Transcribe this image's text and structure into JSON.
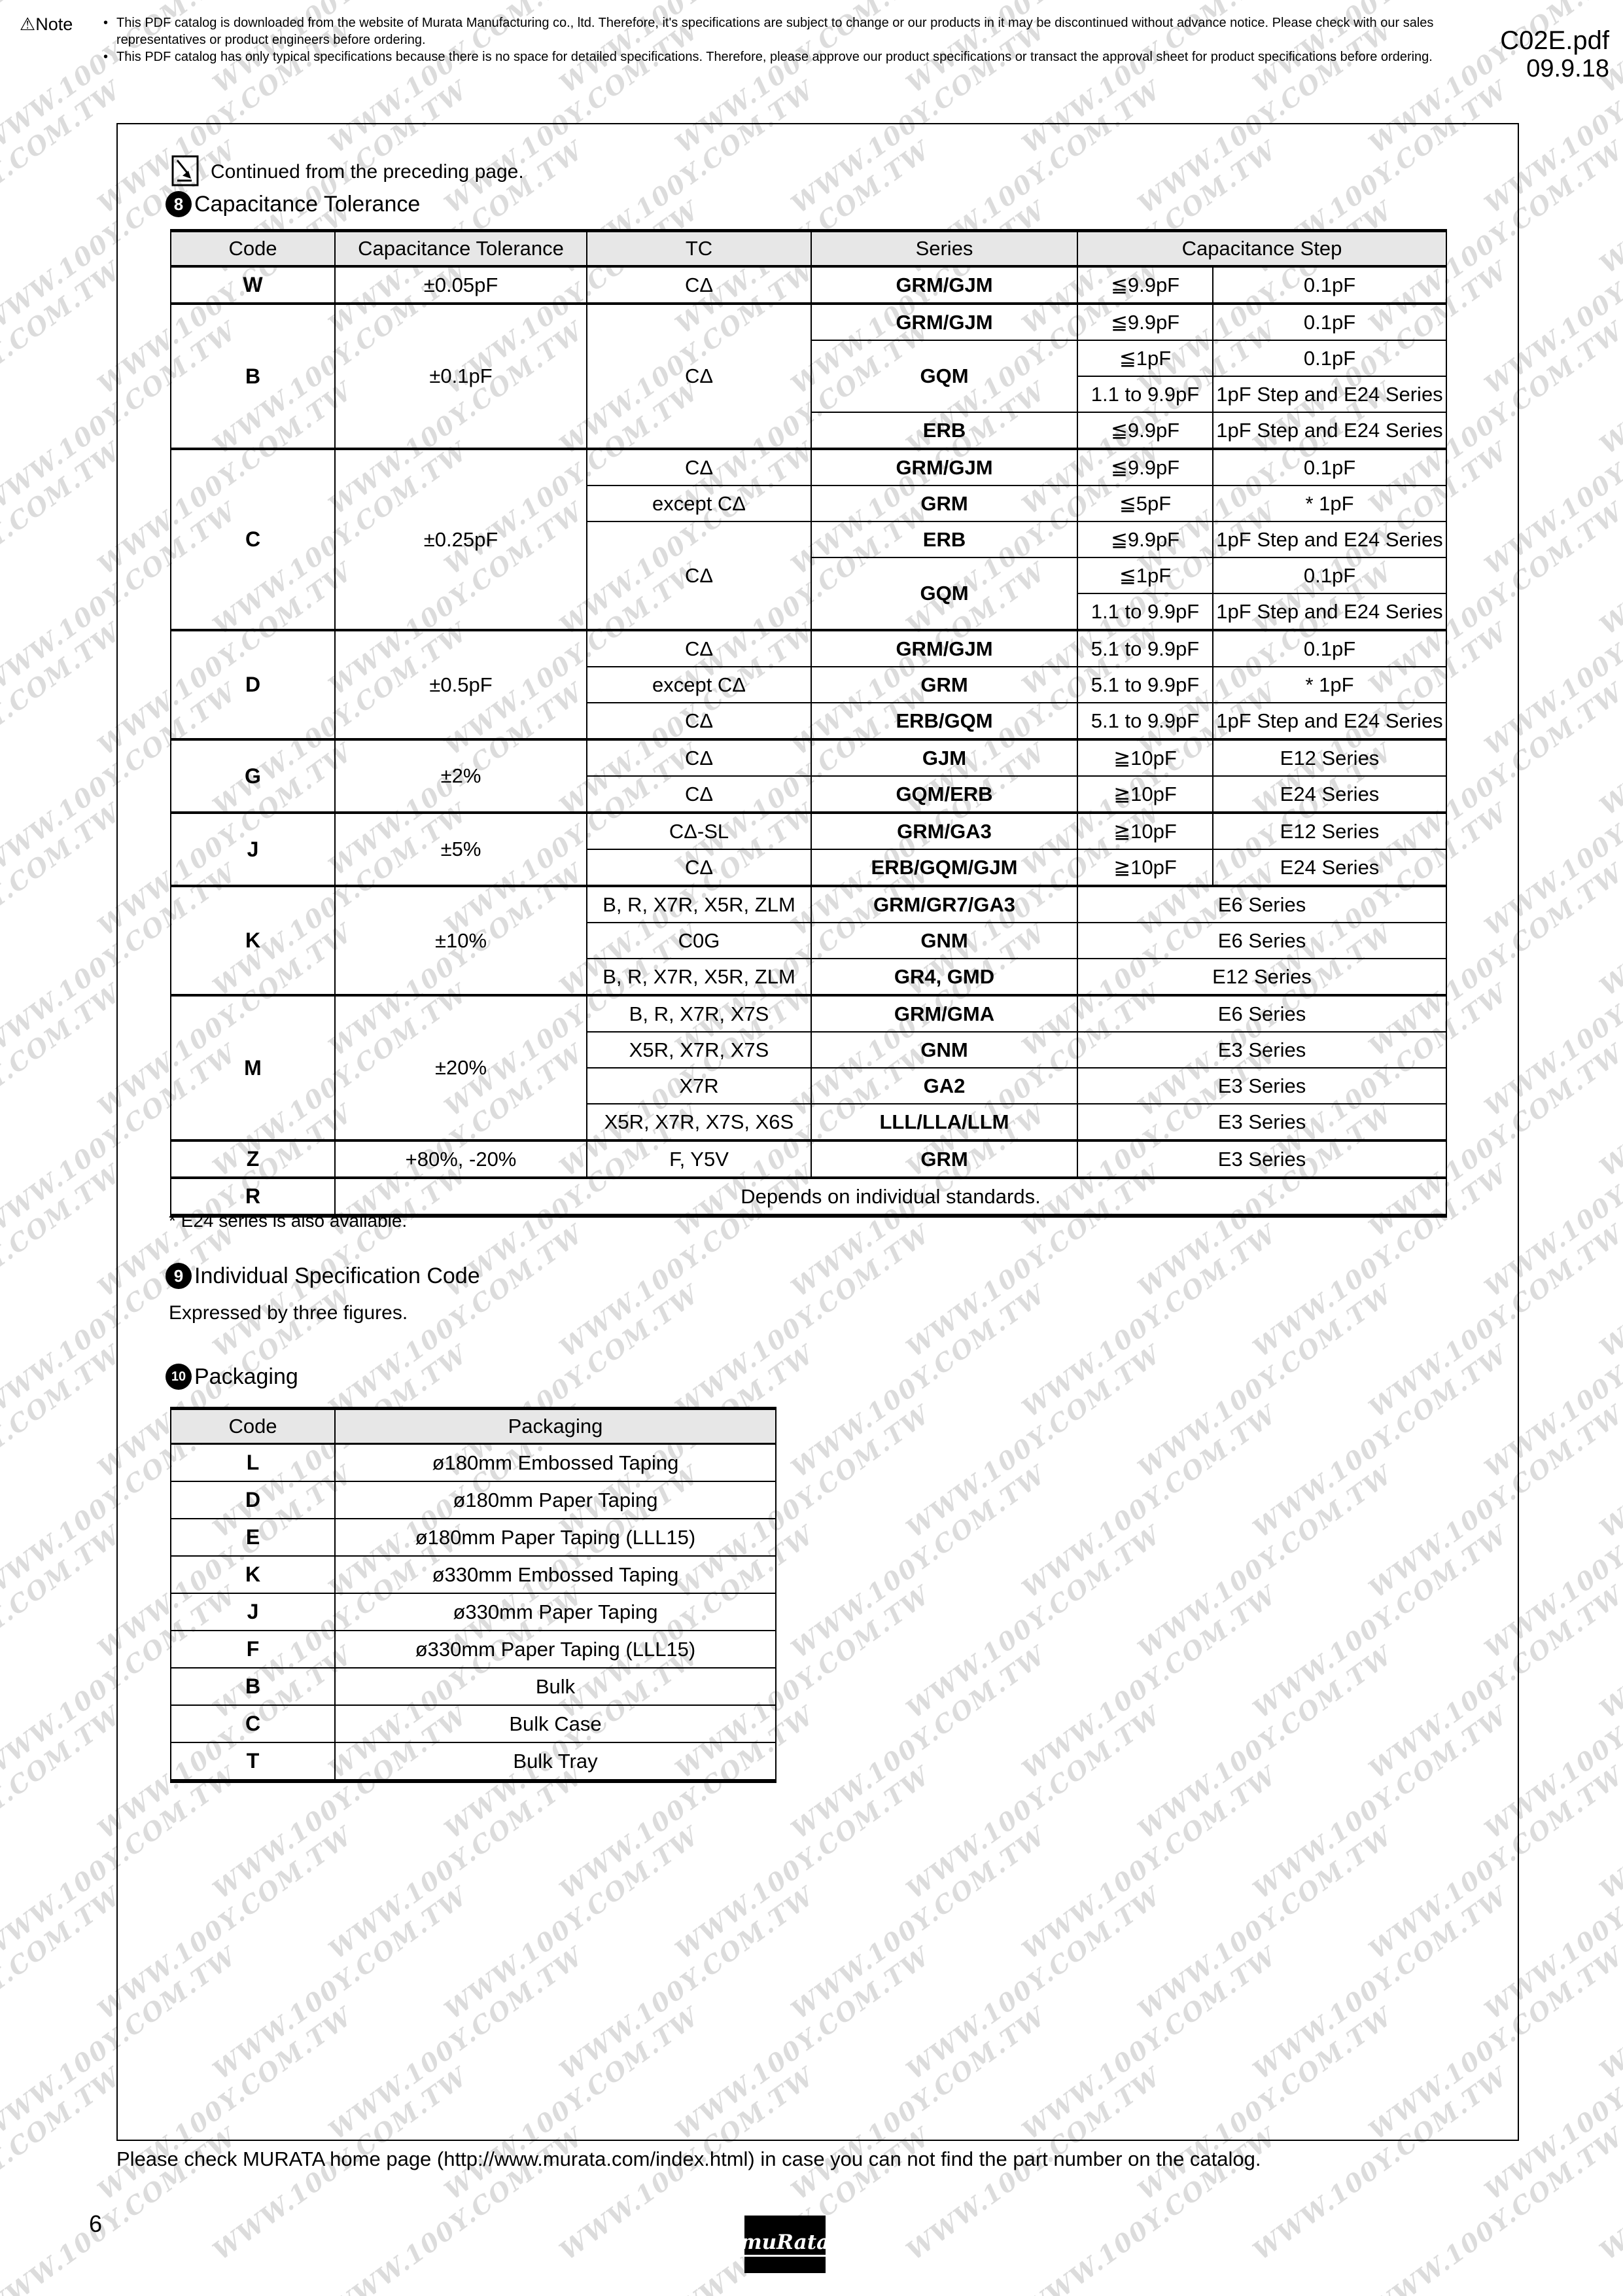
{
  "page": {
    "doc_id": "C02E.pdf",
    "doc_date": "09.9.18",
    "note_label": "Note",
    "note_lines": [
      "This PDF catalog is downloaded from the website of Murata Manufacturing co., ltd. Therefore, it's specifications are subject to change or our products in it may be discontinued without advance notice. Please check with our sales representatives or product engineers before ordering.",
      "This PDF catalog has only typical specifications because there is no space for detailed specifications. Therefore, please approve our product specifications or transact the approval sheet for product specifications before ordering."
    ],
    "continued_note": "Continued from the preceding page.",
    "footer_note": "Please check MURATA home page (http://www.murata.com/index.html) in case you can not find the part number on the catalog.",
    "page_number": "6",
    "brand": "muRata",
    "watermark_text": "WWW.100Y.COM.TW"
  },
  "sections": {
    "s8": {
      "number": "8",
      "title": "Capacitance Tolerance"
    },
    "s9": {
      "number": "9",
      "title": "Individual Specification Code",
      "subtitle": "Expressed by three figures."
    },
    "s10": {
      "number": "10",
      "title": "Packaging"
    }
  },
  "tol": {
    "headers": {
      "code": "Code",
      "tolerance": "Capacitance Tolerance",
      "tc": "TC",
      "series": "Series",
      "step": "Capacitance Step"
    },
    "footnote": "* E24 series is also available.",
    "groups": [
      {
        "code": "W",
        "tol": "±0.05pF",
        "rows": [
          {
            "tc": "CΔ",
            "series": "GRM/GJM",
            "s1": "≦9.9pF",
            "s2": "0.1pF"
          }
        ]
      },
      {
        "code": "B",
        "tol": "±0.1pF",
        "tc": "CΔ",
        "rows": [
          {
            "series": "GRM/GJM",
            "s1": "≦9.9pF",
            "s2": "0.1pF"
          },
          {
            "series": "GQM",
            "s1": "≦1pF",
            "s2": "0.1pF"
          },
          {
            "s1": "1.1 to 9.9pF",
            "s2": "1pF Step and E24 Series"
          },
          {
            "series": "ERB",
            "s1": "≦9.9pF",
            "s2": "1pF Step and E24 Series"
          }
        ]
      },
      {
        "code": "C",
        "tol": "±0.25pF",
        "rows": [
          {
            "tc": "CΔ",
            "series": "GRM/GJM",
            "s1": "≦9.9pF",
            "s2": "0.1pF"
          },
          {
            "tc": "except CΔ",
            "series": "GRM",
            "s1": "≦5pF",
            "s2": "* 1pF"
          },
          {
            "tc": "CΔ",
            "series": "ERB",
            "s1": "≦9.9pF",
            "s2": "1pF Step and E24 Series"
          },
          {
            "series": "GQM",
            "s1": "≦1pF",
            "s2": "0.1pF"
          },
          {
            "s1": "1.1 to 9.9pF",
            "s2": "1pF Step and E24 Series"
          }
        ]
      },
      {
        "code": "D",
        "tol": "±0.5pF",
        "rows": [
          {
            "tc": "CΔ",
            "series": "GRM/GJM",
            "s1": "5.1 to 9.9pF",
            "s2": "0.1pF"
          },
          {
            "tc": "except CΔ",
            "series": "GRM",
            "s1": "5.1 to 9.9pF",
            "s2": "* 1pF"
          },
          {
            "tc": "CΔ",
            "series": "ERB/GQM",
            "s1": "5.1 to 9.9pF",
            "s2": "1pF Step and E24 Series"
          }
        ]
      },
      {
        "code": "G",
        "tol": "±2%",
        "rows": [
          {
            "tc": "CΔ",
            "series": "GJM",
            "s1": "≧10pF",
            "s2": "E12 Series"
          },
          {
            "tc": "CΔ",
            "series": "GQM/ERB",
            "s1": "≧10pF",
            "s2": "E24 Series"
          }
        ]
      },
      {
        "code": "J",
        "tol": "±5%",
        "rows": [
          {
            "tc": "CΔ-SL",
            "series": "GRM/GA3",
            "s1": "≧10pF",
            "s2": "E12 Series"
          },
          {
            "tc": "CΔ",
            "series": "ERB/GQM/GJM",
            "s1": "≧10pF",
            "s2": "E24 Series"
          }
        ]
      },
      {
        "code": "K",
        "tol": "±10%",
        "rows": [
          {
            "tc": "B, R, X7R, X5R, ZLM",
            "series": "GRM/GR7/GA3",
            "step": "E6 Series"
          },
          {
            "tc": "C0G",
            "series": "GNM",
            "step": "E6 Series"
          },
          {
            "tc": "B, R, X7R, X5R, ZLM",
            "series": "GR4, GMD",
            "step": "E12 Series"
          }
        ]
      },
      {
        "code": "M",
        "tol": "±20%",
        "rows": [
          {
            "tc": "B, R, X7R, X7S",
            "series": "GRM/GMA",
            "step": "E6 Series"
          },
          {
            "tc": "X5R, X7R, X7S",
            "series": "GNM",
            "step": "E3 Series"
          },
          {
            "tc": "X7R",
            "series": "GA2",
            "step": "E3 Series"
          },
          {
            "tc": "X5R, X7R, X7S, X6S",
            "series": "LLL/LLA/LLM",
            "step": "E3 Series"
          }
        ]
      },
      {
        "code": "Z",
        "tol": "+80%, -20%",
        "rows": [
          {
            "tc": "F, Y5V",
            "series": "GRM",
            "step": "E3 Series"
          }
        ]
      },
      {
        "code": "R",
        "note": "Depends on individual standards."
      }
    ]
  },
  "pkg": {
    "headers": {
      "code": "Code",
      "packaging": "Packaging"
    },
    "rows": [
      {
        "code": "L",
        "packaging": "ø180mm Embossed Taping"
      },
      {
        "code": "D",
        "packaging": "ø180mm Paper Taping"
      },
      {
        "code": "E",
        "packaging": "ø180mm Paper Taping (LLL15)"
      },
      {
        "code": "K",
        "packaging": "ø330mm Embossed Taping"
      },
      {
        "code": "J",
        "packaging": "ø330mm Paper Taping"
      },
      {
        "code": "F",
        "packaging": "ø330mm Paper Taping (LLL15)"
      },
      {
        "code": "B",
        "packaging": "Bulk"
      },
      {
        "code": "C",
        "packaging": "Bulk Case"
      },
      {
        "code": "T",
        "packaging": "Bulk Tray"
      }
    ]
  }
}
